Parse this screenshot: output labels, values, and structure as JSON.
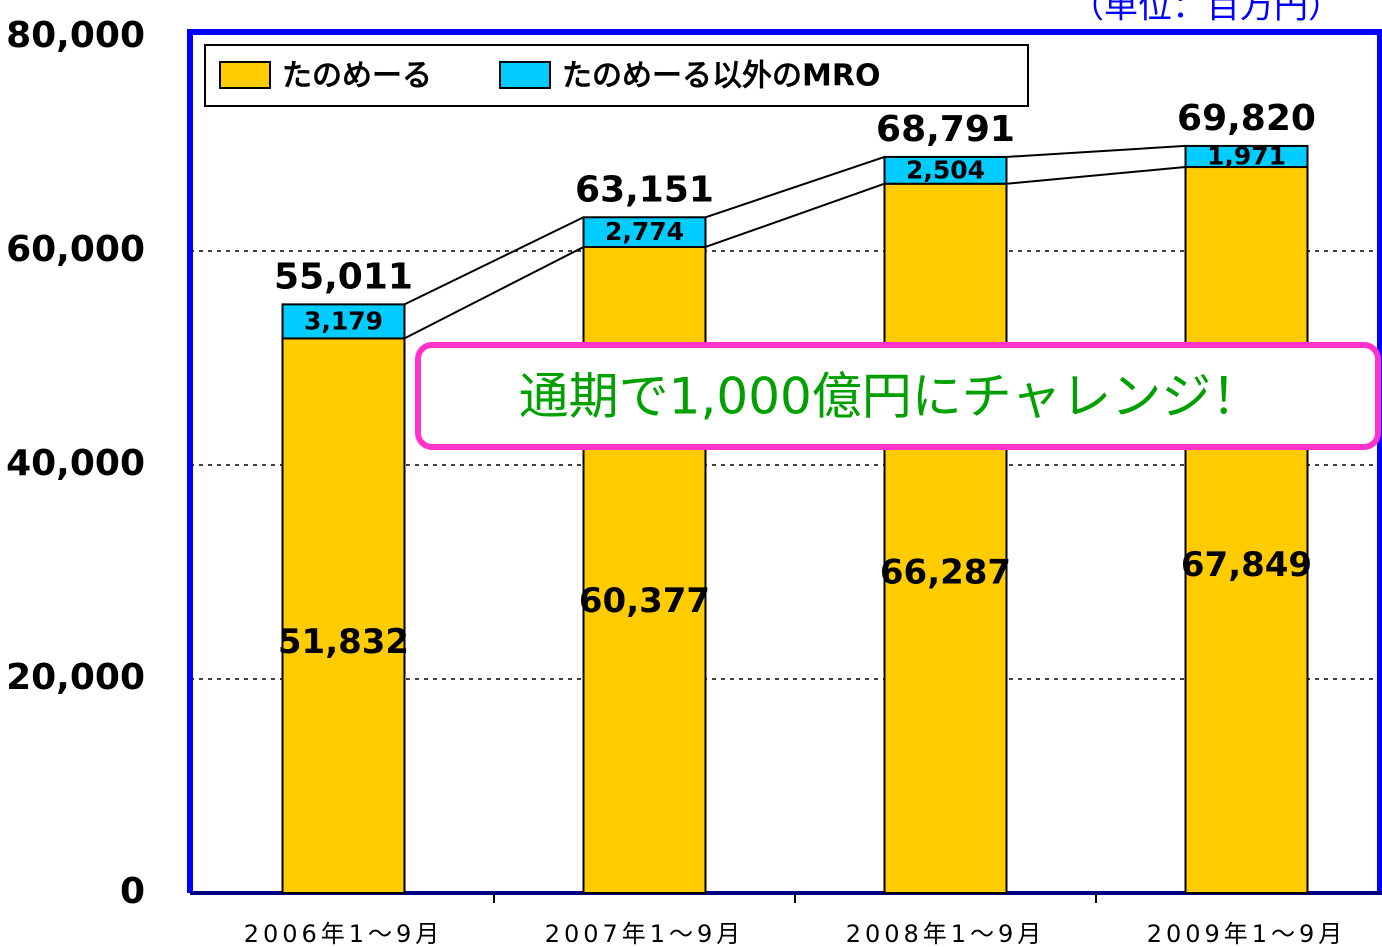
{
  "chart_data": {
    "type": "stacked_bar",
    "unit_note": "（単位：百万円）",
    "annotation": "通期で1,000億円にチャレンジ！",
    "categories": [
      "2006年1～9月",
      "2007年1～9月",
      "2008年1～9月",
      "2009年1～9月"
    ],
    "series": [
      {
        "name": "たのめーる",
        "color": "#ffcc00",
        "values": [
          51832,
          60377,
          66287,
          67849
        ],
        "value_labels": [
          "51,832",
          "60,377",
          "66,287",
          "67,849"
        ]
      },
      {
        "name": "たのめーる以外のMRO",
        "color": "#00ccff",
        "values": [
          3179,
          2774,
          2504,
          1971
        ],
        "value_labels": [
          "3,179",
          "2,774",
          "2,504",
          "1,971"
        ]
      }
    ],
    "totals": {
      "values": [
        55011,
        63151,
        68791,
        69820
      ],
      "value_labels": [
        "55,011",
        "63,151",
        "68,791",
        "69,820"
      ]
    },
    "ylim": [
      0,
      80000
    ],
    "yticks": [
      0,
      {
        "value": 20000,
        "label": "20,000"
      },
      {
        "value": 40000,
        "label": "40,000"
      },
      {
        "value": 60000,
        "label": "60,000"
      },
      {
        "value": 80000,
        "label": "80,000"
      }
    ],
    "grid": true
  }
}
